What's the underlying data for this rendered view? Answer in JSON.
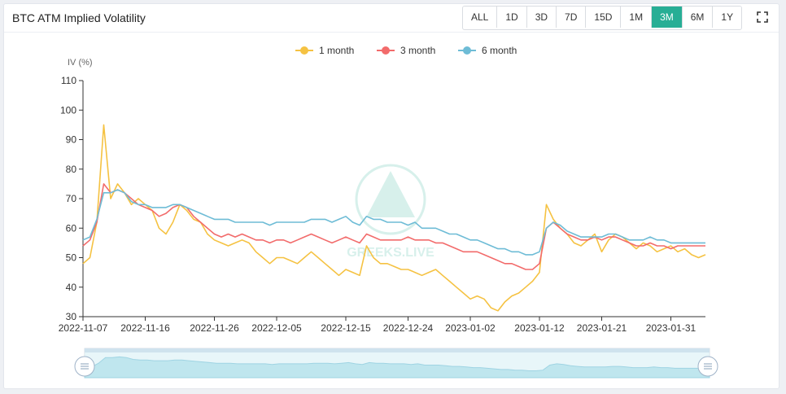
{
  "header": {
    "title": "BTC ATM Implied Volatility",
    "ranges": [
      "ALL",
      "1D",
      "3D",
      "7D",
      "15D",
      "1M",
      "3M",
      "6M",
      "1Y"
    ],
    "active_range": "3M"
  },
  "watermark": "GREEKS.LIVE",
  "colors": {
    "one_month": "#f5c242",
    "three_month": "#f26b6b",
    "six_month": "#6ebcd6",
    "accent": "#27ae95"
  },
  "chart_data": {
    "type": "line",
    "ylabel": "IV (%)",
    "ylim": [
      30,
      110
    ],
    "yticks": [
      30,
      40,
      50,
      60,
      70,
      80,
      90,
      100,
      110
    ],
    "xlim": [
      0,
      90
    ],
    "xticks": [
      {
        "x": 0,
        "label": "2022-11-07"
      },
      {
        "x": 9,
        "label": "2022-11-16"
      },
      {
        "x": 19,
        "label": "2022-11-26"
      },
      {
        "x": 28,
        "label": "2022-12-05"
      },
      {
        "x": 38,
        "label": "2022-12-15"
      },
      {
        "x": 47,
        "label": "2022-12-24"
      },
      {
        "x": 56,
        "label": "2023-01-02"
      },
      {
        "x": 66,
        "label": "2023-01-12"
      },
      {
        "x": 75,
        "label": "2023-01-21"
      },
      {
        "x": 85,
        "label": "2023-01-31"
      }
    ],
    "legend": "top-center",
    "grid": false,
    "x": [
      0,
      1,
      2,
      3,
      4,
      5,
      6,
      7,
      8,
      9,
      10,
      11,
      12,
      13,
      14,
      15,
      16,
      17,
      18,
      19,
      20,
      21,
      22,
      23,
      24,
      25,
      26,
      27,
      28,
      29,
      30,
      31,
      32,
      33,
      34,
      35,
      36,
      37,
      38,
      39,
      40,
      41,
      42,
      43,
      44,
      45,
      46,
      47,
      48,
      49,
      50,
      51,
      52,
      53,
      54,
      55,
      56,
      57,
      58,
      59,
      60,
      61,
      62,
      63,
      64,
      65,
      66,
      67,
      68,
      69,
      70,
      71,
      72,
      73,
      74,
      75,
      76,
      77,
      78,
      79,
      80,
      81,
      82,
      83,
      84,
      85,
      86,
      87,
      88,
      89,
      90
    ],
    "series": [
      {
        "name": "1 month",
        "color": "#f5c242",
        "values": [
          48,
          50,
          62,
          95,
          70,
          75,
          72,
          68,
          70,
          68,
          66,
          60,
          58,
          62,
          68,
          66,
          63,
          62,
          58,
          56,
          55,
          54,
          55,
          56,
          55,
          52,
          50,
          48,
          50,
          50,
          49,
          48,
          50,
          52,
          50,
          48,
          46,
          44,
          46,
          45,
          44,
          54,
          50,
          48,
          48,
          47,
          46,
          46,
          45,
          44,
          45,
          46,
          44,
          42,
          40,
          38,
          36,
          37,
          36,
          33,
          32,
          35,
          37,
          38,
          40,
          42,
          45,
          68,
          63,
          60,
          58,
          55,
          54,
          56,
          58,
          52,
          56,
          58,
          57,
          55,
          53,
          55,
          54,
          52,
          53,
          54,
          52,
          53,
          51,
          50,
          51
        ]
      },
      {
        "name": "3 month",
        "color": "#f26b6b",
        "values": [
          54,
          56,
          62,
          75,
          72,
          73,
          72,
          70,
          68,
          67,
          66,
          64,
          65,
          67,
          68,
          67,
          64,
          62,
          60,
          58,
          57,
          58,
          57,
          58,
          57,
          56,
          56,
          55,
          56,
          56,
          55,
          56,
          57,
          58,
          57,
          56,
          55,
          56,
          57,
          56,
          55,
          58,
          57,
          56,
          56,
          56,
          56,
          57,
          56,
          56,
          56,
          55,
          55,
          54,
          53,
          52,
          52,
          52,
          51,
          50,
          49,
          48,
          48,
          47,
          46,
          46,
          48,
          60,
          62,
          60,
          58,
          57,
          56,
          56,
          57,
          56,
          57,
          57,
          56,
          55,
          54,
          54,
          55,
          54,
          54,
          53,
          54,
          54,
          54,
          54,
          54
        ]
      },
      {
        "name": "6 month",
        "color": "#6ebcd6",
        "values": [
          56,
          57,
          63,
          72,
          72,
          73,
          72,
          69,
          68,
          68,
          67,
          67,
          67,
          68,
          68,
          67,
          66,
          65,
          64,
          63,
          63,
          63,
          62,
          62,
          62,
          62,
          62,
          61,
          62,
          62,
          62,
          62,
          62,
          63,
          63,
          63,
          62,
          63,
          64,
          62,
          61,
          64,
          63,
          63,
          62,
          62,
          62,
          61,
          62,
          60,
          60,
          60,
          59,
          58,
          58,
          57,
          56,
          56,
          55,
          54,
          53,
          53,
          52,
          52,
          51,
          51,
          52,
          60,
          62,
          61,
          59,
          58,
          57,
          57,
          57,
          57,
          58,
          58,
          57,
          56,
          56,
          56,
          57,
          56,
          56,
          55,
          55,
          55,
          55,
          55,
          55
        ]
      }
    ]
  }
}
